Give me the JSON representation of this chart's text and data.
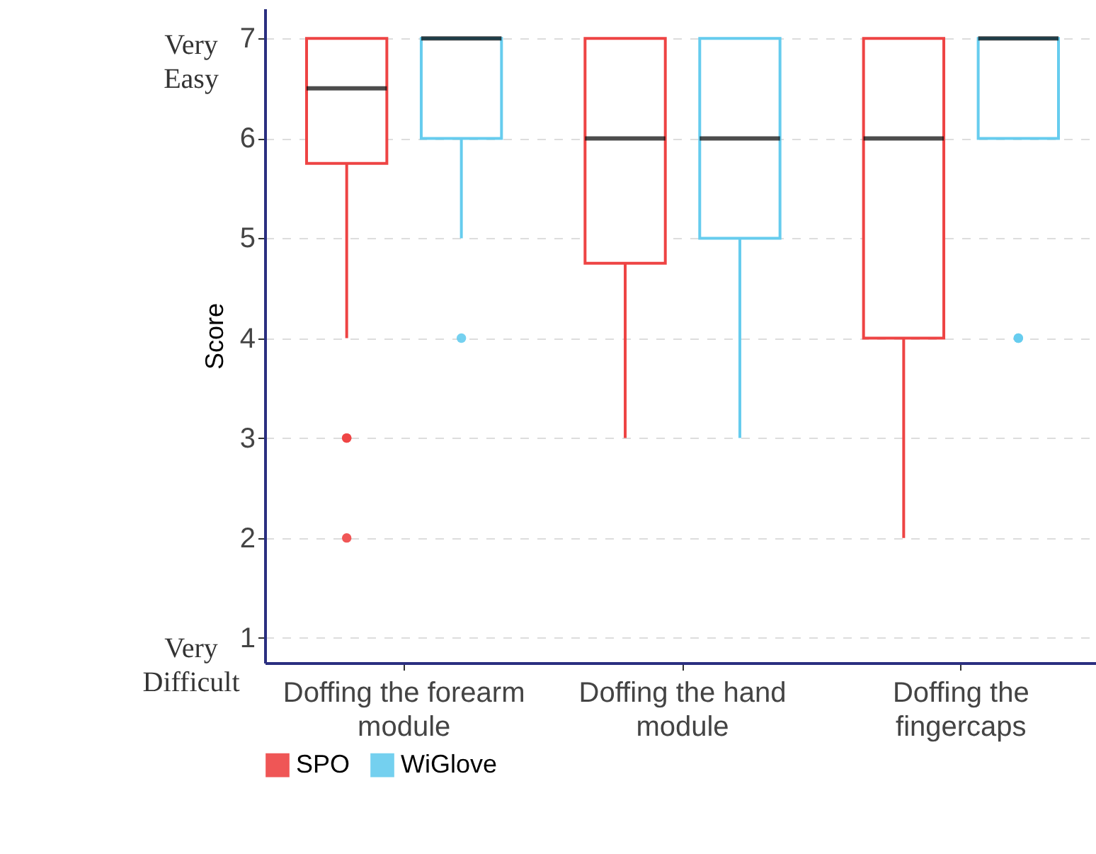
{
  "chart_data": {
    "type": "box",
    "ylabel": "Score",
    "categories": [
      "Doffing the forearm module",
      "Doffing the hand module",
      "Doffing the fingercaps"
    ],
    "series": [
      {
        "name": "SPO",
        "color": "#ee4444",
        "boxes": [
          {
            "low": 4,
            "q1": 5.75,
            "median": 6.5,
            "q3": 7,
            "high": 7,
            "outliers": [
              3,
              3,
              2
            ]
          },
          {
            "low": 3,
            "q1": 4.75,
            "median": 6,
            "q3": 7,
            "high": 7
          },
          {
            "low": 2,
            "q1": 4,
            "median": 6,
            "q3": 7,
            "high": 7
          }
        ]
      },
      {
        "name": "WiGlove",
        "color": "#66ccee",
        "boxes": [
          {
            "low": 5,
            "q1": 6,
            "median": 7,
            "q3": 7,
            "high": 7,
            "outliers": [
              4
            ]
          },
          {
            "low": 3,
            "q1": 5,
            "median": 6,
            "q3": 7,
            "high": 7
          },
          {
            "low": 6,
            "q1": 6,
            "median": 7,
            "q3": 7,
            "high": 7,
            "outliers": [
              4,
              4
            ]
          }
        ]
      }
    ],
    "ylim": [
      0.75,
      7.3
    ],
    "yticks": [
      1,
      2,
      3,
      4,
      5,
      6,
      7
    ],
    "grid": "y",
    "legend": "bottom",
    "annotations": [
      "Very Easy",
      "Very Difficult"
    ]
  }
}
